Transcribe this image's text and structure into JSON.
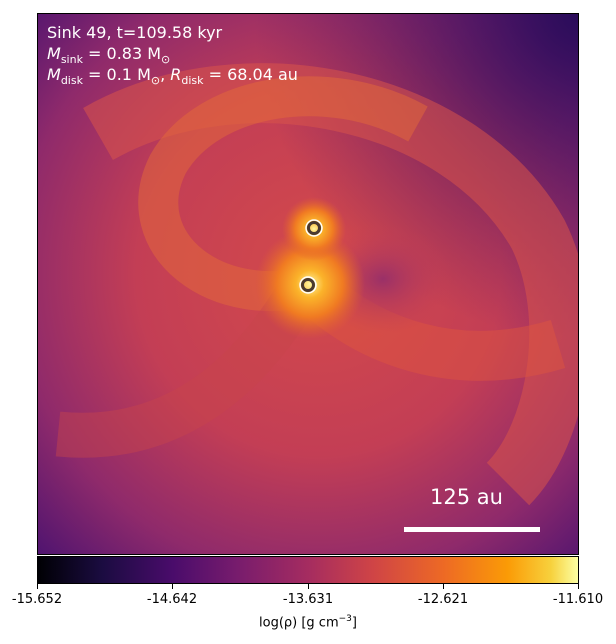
{
  "overlay": {
    "line1": "Sink 49, t=109.58 kyr",
    "sink_mass_symbol": "M",
    "sink_mass_sub": "sink",
    "sink_mass_value": " = 0.83 M",
    "sun_symbol": "⊙",
    "disk_mass_symbol": "M",
    "disk_mass_sub": "disk",
    "disk_mass_value": " = 0.1 M",
    "disk_radius_symbol": "R",
    "disk_radius_sub": "disk",
    "disk_radius_value": " = 68.04 au",
    "comma": ", "
  },
  "scalebar": {
    "label": "125 au"
  },
  "colorbar": {
    "ticks": [
      "-15.652",
      "-14.642",
      "-13.631",
      "-12.621",
      "-11.610"
    ],
    "label_prefix": "log(ρ) [g cm",
    "label_exp": "−3",
    "label_suffix": "]",
    "colormap": "inferno"
  },
  "sinks": [
    {
      "name": "sink-upper"
    },
    {
      "name": "sink-lower"
    }
  ]
}
